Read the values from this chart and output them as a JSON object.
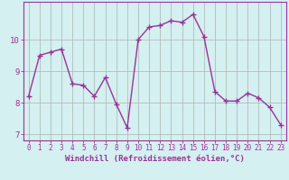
{
  "x": [
    0,
    1,
    2,
    3,
    4,
    5,
    6,
    7,
    8,
    9,
    10,
    11,
    12,
    13,
    14,
    15,
    16,
    17,
    18,
    19,
    20,
    21,
    22,
    23
  ],
  "y": [
    8.2,
    9.5,
    9.6,
    9.7,
    8.6,
    8.55,
    8.2,
    8.8,
    7.95,
    7.2,
    10.0,
    10.4,
    10.45,
    10.6,
    10.55,
    10.8,
    10.1,
    8.35,
    8.05,
    8.05,
    8.3,
    8.15,
    7.85,
    7.3
  ],
  "line_color": "#993399",
  "marker": "+",
  "markersize": 4,
  "linewidth": 1.0,
  "xlabel": "Windchill (Refroidissement éolien,°C)",
  "xlabel_fontsize": 6.5,
  "bg_color": "#d4f0f0",
  "grid_color": "#b0b0b0",
  "tick_color": "#993399",
  "tick_labelcolor": "#993399",
  "xlim": [
    -0.5,
    23.5
  ],
  "ylim": [
    6.8,
    11.2
  ],
  "yticks": [
    7,
    8,
    9,
    10
  ],
  "xticks": [
    0,
    1,
    2,
    3,
    4,
    5,
    6,
    7,
    8,
    9,
    10,
    11,
    12,
    13,
    14,
    15,
    16,
    17,
    18,
    19,
    20,
    21,
    22,
    23
  ],
  "spine_color": "#993399",
  "tick_fontsize": 5.5,
  "ytick_fontsize": 6.5
}
